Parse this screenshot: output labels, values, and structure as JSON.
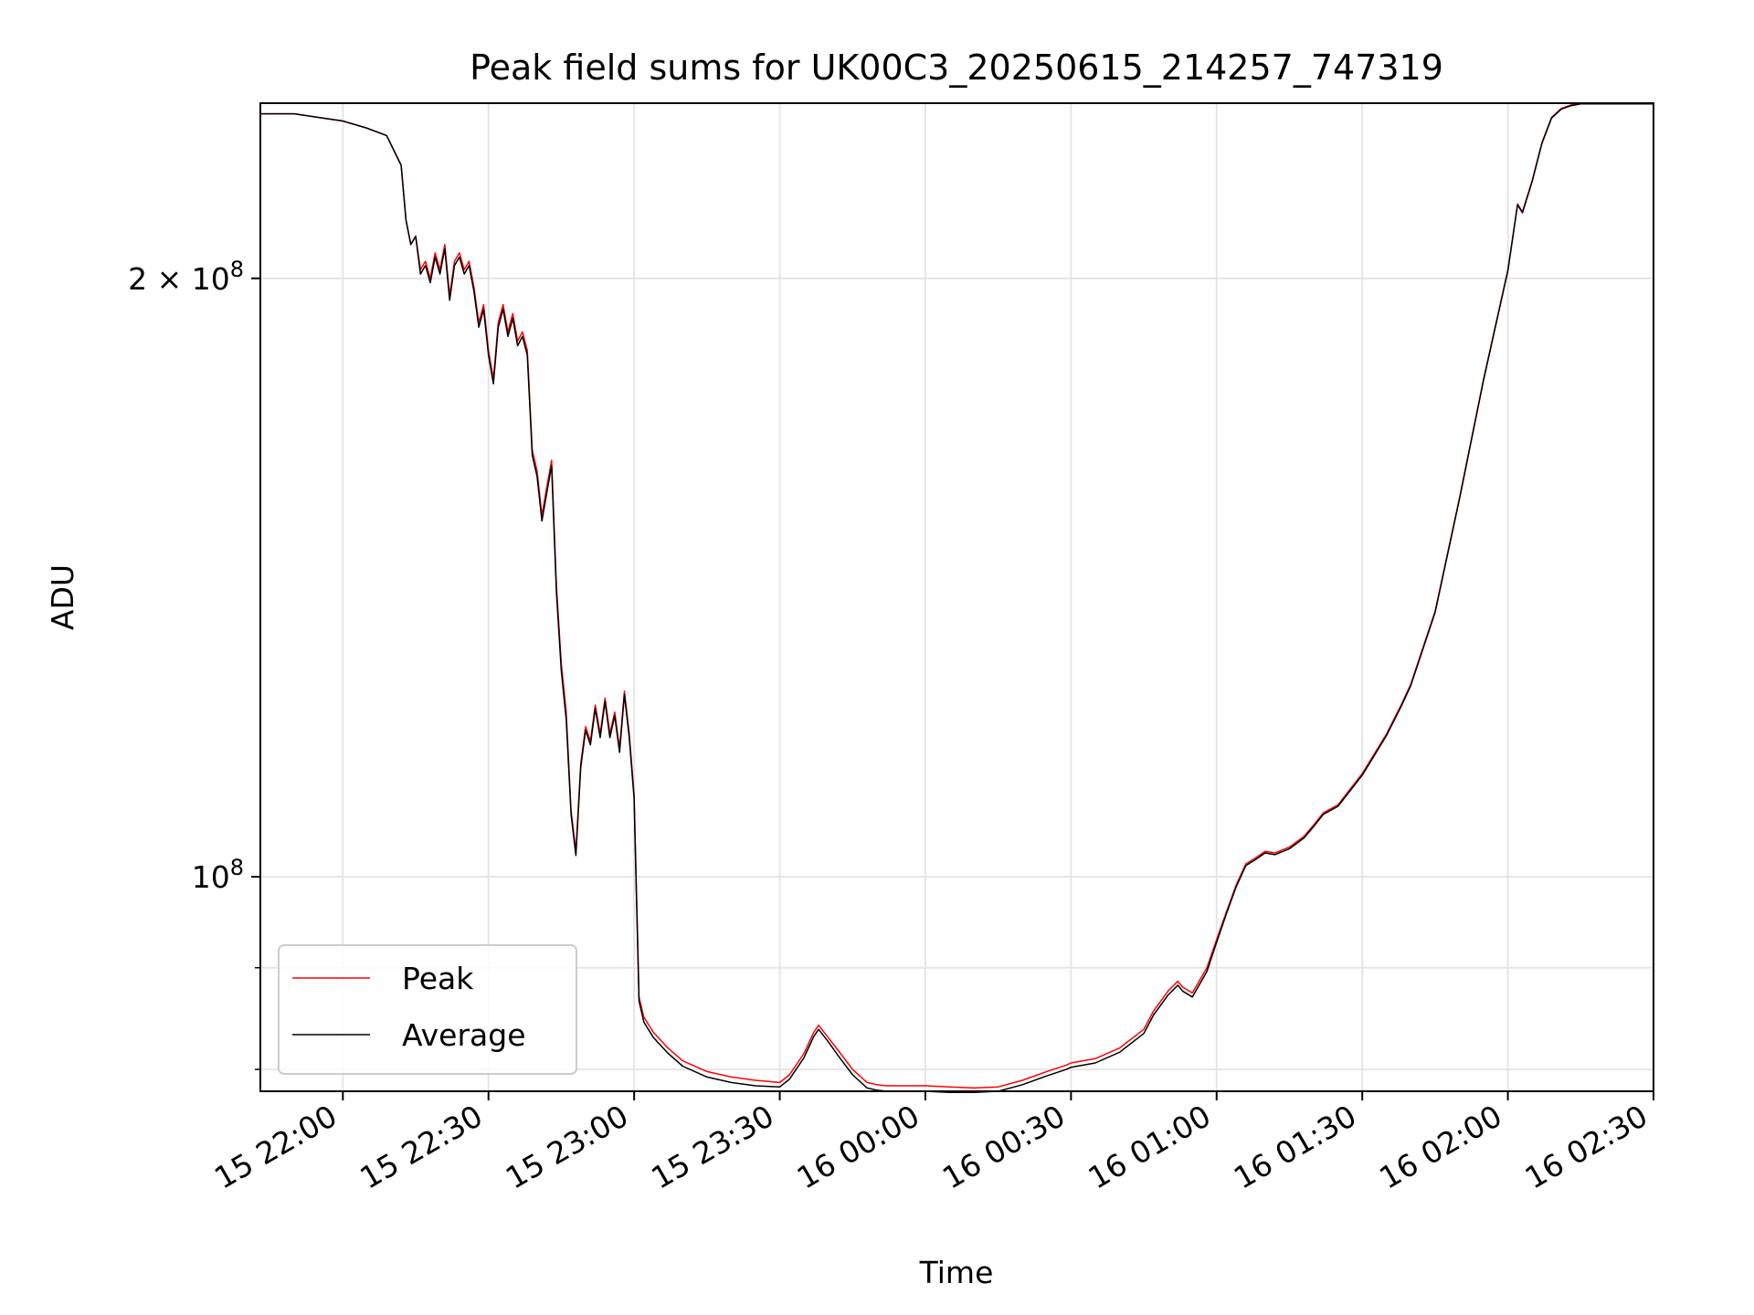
{
  "chart_data": {
    "type": "line",
    "title": "Peak field sums for UK00C3_20250615_214257_747319",
    "xlabel": "Time",
    "ylabel": "ADU",
    "y_scale": "log",
    "grid": true,
    "legend_position": "lower-left",
    "xlim": [
      "2025-06-15 21:43",
      "2025-06-16 02:30"
    ],
    "ylim": [
      78000000,
      245000000
    ],
    "x_ticks": [
      {
        "value": "2025-06-15 22:00",
        "label": "15 22:00"
      },
      {
        "value": "2025-06-15 22:30",
        "label": "15 22:30"
      },
      {
        "value": "2025-06-15 23:00",
        "label": "15 23:00"
      },
      {
        "value": "2025-06-15 23:30",
        "label": "15 23:30"
      },
      {
        "value": "2025-06-16 00:00",
        "label": "16 00:00"
      },
      {
        "value": "2025-06-16 00:30",
        "label": "16 00:30"
      },
      {
        "value": "2025-06-16 01:00",
        "label": "16 01:00"
      },
      {
        "value": "2025-06-16 01:30",
        "label": "16 01:30"
      },
      {
        "value": "2025-06-16 02:00",
        "label": "16 02:00"
      },
      {
        "value": "2025-06-16 02:30",
        "label": "16 02:30"
      }
    ],
    "y_major_ticks": [
      {
        "value": 100000000,
        "base": "10",
        "exp": "8",
        "mant": ""
      },
      {
        "value": 200000000,
        "base": "10",
        "exp": "8",
        "mant": "2 × "
      }
    ],
    "y_minor_ticks": [
      80000000,
      90000000
    ],
    "series": [
      {
        "name": "Peak",
        "color": "#ff0000",
        "x": [
          "2025-06-15 21:43",
          "2025-06-15 21:50",
          "2025-06-15 21:55",
          "2025-06-15 22:00",
          "2025-06-15 22:05",
          "2025-06-15 22:09",
          "2025-06-15 22:12",
          "2025-06-15 22:13",
          "2025-06-15 22:14",
          "2025-06-15 22:15",
          "2025-06-15 22:16",
          "2025-06-15 22:17",
          "2025-06-15 22:18",
          "2025-06-15 22:19",
          "2025-06-15 22:20",
          "2025-06-15 22:21",
          "2025-06-15 22:22",
          "2025-06-15 22:23",
          "2025-06-15 22:24",
          "2025-06-15 22:25",
          "2025-06-15 22:26",
          "2025-06-15 22:27",
          "2025-06-15 22:28",
          "2025-06-15 22:29",
          "2025-06-15 22:30",
          "2025-06-15 22:31",
          "2025-06-15 22:32",
          "2025-06-15 22:33",
          "2025-06-15 22:34",
          "2025-06-15 22:35",
          "2025-06-15 22:36",
          "2025-06-15 22:37",
          "2025-06-15 22:38",
          "2025-06-15 22:39",
          "2025-06-15 22:40",
          "2025-06-15 22:41",
          "2025-06-15 22:42",
          "2025-06-15 22:43",
          "2025-06-15 22:44",
          "2025-06-15 22:45",
          "2025-06-15 22:46",
          "2025-06-15 22:47",
          "2025-06-15 22:48",
          "2025-06-15 22:49",
          "2025-06-15 22:50",
          "2025-06-15 22:51",
          "2025-06-15 22:52",
          "2025-06-15 22:53",
          "2025-06-15 22:54",
          "2025-06-15 22:55",
          "2025-06-15 22:56",
          "2025-06-15 22:57",
          "2025-06-15 22:58",
          "2025-06-15 22:59",
          "2025-06-15 23:00",
          "2025-06-15 23:01",
          "2025-06-15 23:02",
          "2025-06-15 23:04",
          "2025-06-15 23:07",
          "2025-06-15 23:10",
          "2025-06-15 23:15",
          "2025-06-15 23:20",
          "2025-06-15 23:25",
          "2025-06-15 23:30",
          "2025-06-15 23:32",
          "2025-06-15 23:35",
          "2025-06-15 23:37",
          "2025-06-15 23:38",
          "2025-06-15 23:40",
          "2025-06-15 23:42",
          "2025-06-15 23:45",
          "2025-06-15 23:48",
          "2025-06-15 23:50",
          "2025-06-15 23:52",
          "2025-06-15 23:55",
          "2025-06-16 00:00",
          "2025-06-16 00:05",
          "2025-06-16 00:10",
          "2025-06-16 00:15",
          "2025-06-16 00:20",
          "2025-06-16 00:25",
          "2025-06-16 00:29",
          "2025-06-16 00:30",
          "2025-06-16 00:35",
          "2025-06-16 00:40",
          "2025-06-16 00:45",
          "2025-06-16 00:47",
          "2025-06-16 00:50",
          "2025-06-16 00:52",
          "2025-06-16 00:53",
          "2025-06-16 00:55",
          "2025-06-16 00:58",
          "2025-06-16 01:00",
          "2025-06-16 01:02",
          "2025-06-16 01:04",
          "2025-06-16 01:06",
          "2025-06-16 01:08",
          "2025-06-16 01:10",
          "2025-06-16 01:12",
          "2025-06-16 01:15",
          "2025-06-16 01:18",
          "2025-06-16 01:20",
          "2025-06-16 01:22",
          "2025-06-16 01:25",
          "2025-06-16 01:30",
          "2025-06-16 01:35",
          "2025-06-16 01:38",
          "2025-06-16 01:40",
          "2025-06-16 01:45",
          "2025-06-16 01:50",
          "2025-06-16 01:55",
          "2025-06-16 02:00",
          "2025-06-16 02:02",
          "2025-06-16 02:03",
          "2025-06-16 02:05",
          "2025-06-16 02:07",
          "2025-06-16 02:09",
          "2025-06-16 02:11",
          "2025-06-16 02:13",
          "2025-06-16 02:15",
          "2025-06-16 02:30"
        ],
        "values": [
          242000000,
          242000000,
          241000000,
          240000000,
          238000000,
          236000000,
          228000000,
          214000000,
          208000000,
          210000000,
          202000000,
          204000000,
          200000000,
          206000000,
          202000000,
          208000000,
          196000000,
          204000000,
          206000000,
          202000000,
          204000000,
          198000000,
          190000000,
          194000000,
          184000000,
          178000000,
          190000000,
          194000000,
          188000000,
          192000000,
          186000000,
          188000000,
          184000000,
          164000000,
          160000000,
          152000000,
          157000000,
          162000000,
          140000000,
          128000000,
          121000000,
          108000000,
          103000000,
          114000000,
          119000000,
          117000000,
          122000000,
          118000000,
          123000000,
          118000000,
          121000000,
          116000000,
          124000000,
          118000000,
          110000000,
          87000000,
          85000000,
          83500000,
          82000000,
          80800000,
          79800000,
          79300000,
          79000000,
          78800000,
          79500000,
          81500000,
          83500000,
          84200000,
          83000000,
          81800000,
          80000000,
          78800000,
          78600000,
          78500000,
          78500000,
          78500000,
          78400000,
          78300000,
          78400000,
          79000000,
          79800000,
          80400000,
          80600000,
          81000000,
          82000000,
          83800000,
          85600000,
          87600000,
          88600000,
          88000000,
          87400000,
          90000000,
          93000000,
          96000000,
          99000000,
          101500000,
          102200000,
          103000000,
          102800000,
          103500000,
          104800000,
          106200000,
          107700000,
          108700000,
          112700000,
          118000000,
          122000000,
          125000000,
          136000000,
          155000000,
          178000000,
          202000000,
          218000000,
          216000000,
          224000000,
          234000000,
          241000000,
          243500000,
          244500000,
          245000000,
          245000000
        ]
      },
      {
        "name": "Average",
        "color": "#000000",
        "x": [
          "2025-06-15 21:43",
          "2025-06-15 21:50",
          "2025-06-15 21:55",
          "2025-06-15 22:00",
          "2025-06-15 22:05",
          "2025-06-15 22:09",
          "2025-06-15 22:12",
          "2025-06-15 22:13",
          "2025-06-15 22:14",
          "2025-06-15 22:15",
          "2025-06-15 22:16",
          "2025-06-15 22:17",
          "2025-06-15 22:18",
          "2025-06-15 22:19",
          "2025-06-15 22:20",
          "2025-06-15 22:21",
          "2025-06-15 22:22",
          "2025-06-15 22:23",
          "2025-06-15 22:24",
          "2025-06-15 22:25",
          "2025-06-15 22:26",
          "2025-06-15 22:27",
          "2025-06-15 22:28",
          "2025-06-15 22:29",
          "2025-06-15 22:30",
          "2025-06-15 22:31",
          "2025-06-15 22:32",
          "2025-06-15 22:33",
          "2025-06-15 22:34",
          "2025-06-15 22:35",
          "2025-06-15 22:36",
          "2025-06-15 22:37",
          "2025-06-15 22:38",
          "2025-06-15 22:39",
          "2025-06-15 22:40",
          "2025-06-15 22:41",
          "2025-06-15 22:42",
          "2025-06-15 22:43",
          "2025-06-15 22:44",
          "2025-06-15 22:45",
          "2025-06-15 22:46",
          "2025-06-15 22:47",
          "2025-06-15 22:48",
          "2025-06-15 22:49",
          "2025-06-15 22:50",
          "2025-06-15 22:51",
          "2025-06-15 22:52",
          "2025-06-15 22:53",
          "2025-06-15 22:54",
          "2025-06-15 22:55",
          "2025-06-15 22:56",
          "2025-06-15 22:57",
          "2025-06-15 22:58",
          "2025-06-15 22:59",
          "2025-06-15 23:00",
          "2025-06-15 23:01",
          "2025-06-15 23:02",
          "2025-06-15 23:04",
          "2025-06-15 23:07",
          "2025-06-15 23:10",
          "2025-06-15 23:15",
          "2025-06-15 23:20",
          "2025-06-15 23:25",
          "2025-06-15 23:30",
          "2025-06-15 23:32",
          "2025-06-15 23:35",
          "2025-06-15 23:37",
          "2025-06-15 23:38",
          "2025-06-15 23:40",
          "2025-06-15 23:42",
          "2025-06-15 23:45",
          "2025-06-15 23:48",
          "2025-06-15 23:50",
          "2025-06-15 23:52",
          "2025-06-15 23:55",
          "2025-06-16 00:00",
          "2025-06-16 00:05",
          "2025-06-16 00:10",
          "2025-06-16 00:15",
          "2025-06-16 00:20",
          "2025-06-16 00:25",
          "2025-06-16 00:29",
          "2025-06-16 00:30",
          "2025-06-16 00:35",
          "2025-06-16 00:40",
          "2025-06-16 00:45",
          "2025-06-16 00:47",
          "2025-06-16 00:50",
          "2025-06-16 00:52",
          "2025-06-16 00:53",
          "2025-06-16 00:55",
          "2025-06-16 00:58",
          "2025-06-16 01:00",
          "2025-06-16 01:02",
          "2025-06-16 01:04",
          "2025-06-16 01:06",
          "2025-06-16 01:08",
          "2025-06-16 01:10",
          "2025-06-16 01:12",
          "2025-06-16 01:15",
          "2025-06-16 01:18",
          "2025-06-16 01:20",
          "2025-06-16 01:22",
          "2025-06-16 01:25",
          "2025-06-16 01:30",
          "2025-06-16 01:35",
          "2025-06-16 01:38",
          "2025-06-16 01:40",
          "2025-06-16 01:45",
          "2025-06-16 01:50",
          "2025-06-16 01:55",
          "2025-06-16 02:00",
          "2025-06-16 02:02",
          "2025-06-16 02:03",
          "2025-06-16 02:05",
          "2025-06-16 02:07",
          "2025-06-16 02:09",
          "2025-06-16 02:11",
          "2025-06-16 02:13",
          "2025-06-16 02:15",
          "2025-06-16 02:30"
        ],
        "values": [
          242000000,
          242000000,
          241000000,
          240000000,
          238000000,
          236000000,
          228000000,
          214000000,
          208000000,
          210000000,
          201000000,
          203000000,
          199000000,
          205000000,
          201000000,
          207000000,
          195000000,
          203000000,
          205000000,
          201000000,
          203000000,
          197000000,
          189000000,
          193000000,
          183000000,
          177000000,
          189000000,
          193000000,
          187000000,
          191000000,
          185000000,
          187000000,
          183000000,
          163000000,
          159000000,
          151000000,
          156000000,
          161000000,
          139000000,
          127000000,
          120000000,
          107500000,
          102500000,
          113500000,
          118500000,
          116500000,
          121500000,
          117500000,
          122500000,
          117500000,
          120500000,
          115500000,
          123500000,
          117500000,
          109500000,
          86600000,
          84500000,
          83000000,
          81500000,
          80300000,
          79300000,
          78800000,
          78500000,
          78400000,
          79100000,
          81100000,
          83100000,
          83800000,
          82600000,
          81300000,
          79500000,
          78300000,
          78100000,
          78000000,
          78000000,
          78000000,
          77900000,
          77900000,
          78000000,
          78600000,
          79400000,
          80000000,
          80200000,
          80600000,
          81600000,
          83400000,
          85200000,
          87200000,
          88200000,
          87600000,
          87000000,
          89600000,
          92700000,
          95800000,
          98800000,
          101300000,
          102000000,
          102800000,
          102600000,
          103300000,
          104600000,
          106000000,
          107500000,
          108500000,
          112500000,
          117800000,
          121800000,
          124800000,
          135800000,
          154800000,
          177800000,
          201800000,
          217800000,
          215800000,
          223800000,
          233800000,
          240800000,
          243300000,
          244300000,
          244800000,
          244800000
        ]
      }
    ]
  }
}
